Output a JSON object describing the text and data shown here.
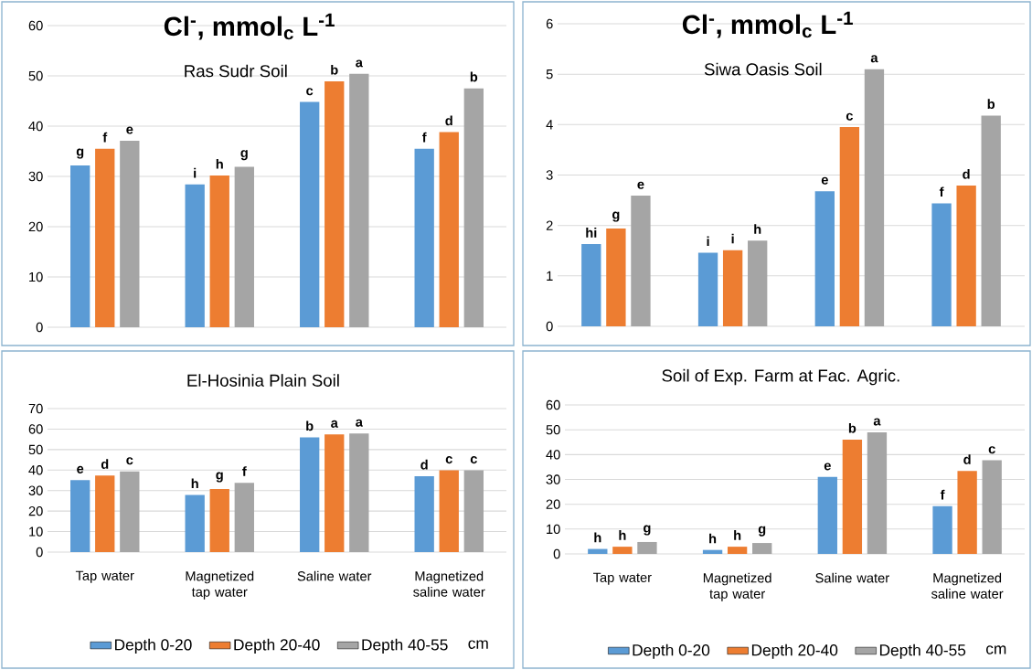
{
  "chart_data": [
    {
      "type": "bar",
      "title": "Cl$^{-}$, mmol$_{c}$ L$^{-1}$",
      "subtitle": "Ras Sudr Soil",
      "categories": [
        null,
        null,
        null,
        null
      ],
      "ylim": [
        0,
        60
      ],
      "yticks": [
        0,
        10,
        20,
        30,
        40,
        50,
        60
      ],
      "grid": "y",
      "series": [
        {
          "color": "#5b9bd5",
          "values": [
            32.2,
            28.4,
            44.8,
            35.5
          ],
          "value_labels": [
            "g",
            "i",
            "c",
            "f"
          ]
        },
        {
          "color": "#ed7d31",
          "values": [
            35.5,
            30.2,
            48.9,
            38.8
          ],
          "value_labels": [
            "f",
            "h",
            "b",
            "d"
          ]
        },
        {
          "color": "#a5a5a5",
          "values": [
            37.1,
            31.9,
            50.4,
            47.5
          ],
          "value_labels": [
            "e",
            "g",
            "a",
            "b"
          ]
        }
      ]
    },
    {
      "type": "bar",
      "title": "Cl$^{-}$, mmol$_{c}$ L$^{-1}$",
      "subtitle": "Siwa Oasis Soil",
      "categories": [
        null,
        null,
        null,
        null
      ],
      "ylim": [
        0,
        6
      ],
      "yticks": [
        0,
        1,
        2,
        3,
        4,
        5,
        6
      ],
      "grid": "y",
      "series": [
        {
          "color": "#5b9bd5",
          "values": [
            1.63,
            1.46,
            2.68,
            2.44
          ],
          "value_labels": [
            "hi",
            "i",
            "e",
            "f"
          ]
        },
        {
          "color": "#ed7d31",
          "values": [
            1.94,
            1.51,
            3.95,
            2.79
          ],
          "value_labels": [
            "g",
            "i",
            "c",
            "d"
          ]
        },
        {
          "color": "#a5a5a5",
          "values": [
            2.59,
            1.7,
            5.1,
            4.18
          ],
          "value_labels": [
            "e",
            "h",
            "a",
            "b"
          ]
        }
      ]
    },
    {
      "type": "bar",
      "title": "El-Hosinia Plain Soil",
      "categories": [
        "Tap water",
        "Magnetized tap water",
        "Saline water",
        "Magnetized saline water"
      ],
      "ylim": [
        0,
        70
      ],
      "yticks": [
        0,
        10,
        20,
        30,
        40,
        50,
        60,
        70
      ],
      "grid": "y",
      "legend": "bottom",
      "legend_title": "cm",
      "series": [
        {
          "name": "Depth 0-20",
          "color": "#5b9bd5",
          "values": [
            35.1,
            27.9,
            55.9,
            37.0
          ],
          "value_labels": [
            "e",
            "h",
            "b",
            "d"
          ]
        },
        {
          "name": "Depth 20-40",
          "color": "#ed7d31",
          "values": [
            37.3,
            30.8,
            57.4,
            39.9
          ],
          "value_labels": [
            "d",
            "g",
            "a",
            "c"
          ]
        },
        {
          "name": "Depth 40-55",
          "color": "#a5a5a5",
          "values": [
            39.4,
            33.8,
            57.9,
            39.9
          ],
          "value_labels": [
            "c",
            "f",
            "a",
            "c"
          ]
        }
      ]
    },
    {
      "type": "bar",
      "title": "Soil of Exp. Farm at Fac. Agric.",
      "categories": [
        "Tap water",
        "Magnetized tap water",
        "Saline water",
        "Magnetized saline water"
      ],
      "ylim": [
        0,
        60
      ],
      "yticks": [
        0,
        10,
        20,
        30,
        40,
        50,
        60
      ],
      "grid": "y",
      "legend": "bottom",
      "legend_title": "cm",
      "series": [
        {
          "name": "Depth 0-20",
          "color": "#5b9bd5",
          "values": [
            2.0,
            1.6,
            31.0,
            19.2
          ],
          "value_labels": [
            "h",
            "h",
            "e",
            "f"
          ]
        },
        {
          "name": "Depth 20-40",
          "color": "#ed7d31",
          "values": [
            2.9,
            2.9,
            46.0,
            33.4
          ],
          "value_labels": [
            "h",
            "h",
            "b",
            "d"
          ]
        },
        {
          "name": "Depth 40-55",
          "color": "#a5a5a5",
          "values": [
            4.8,
            4.4,
            49.0,
            37.7
          ],
          "value_labels": [
            "g",
            "g",
            "a",
            "c"
          ]
        }
      ]
    }
  ]
}
